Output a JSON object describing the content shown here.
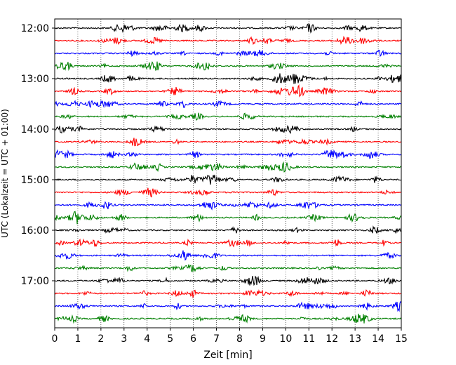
{
  "chart_data": {
    "type": "line",
    "subtype": "helicorder",
    "title": "",
    "xlabel": "Zeit  [min]",
    "ylabel": "UTC (Lokalzeit = UTC + 01:00)",
    "xlim": [
      0,
      15
    ],
    "x_ticks": [
      0,
      1,
      2,
      3,
      4,
      5,
      6,
      7,
      8,
      9,
      10,
      11,
      12,
      13,
      14,
      15
    ],
    "x_tick_labels": [
      "0",
      "1",
      "2",
      "3",
      "4",
      "5",
      "6",
      "7",
      "8",
      "9",
      "10",
      "11",
      "12",
      "13",
      "14",
      "15"
    ],
    "y_tick_labels": [
      "12:00",
      "13:00",
      "14:00",
      "15:00",
      "16:00",
      "17:00"
    ],
    "trace_start_minutes": [
      0,
      15,
      30,
      45,
      60,
      75,
      90,
      105,
      120,
      135,
      150,
      165,
      180,
      195,
      210,
      225,
      240,
      255,
      270,
      285,
      300,
      315,
      330,
      345
    ],
    "trace_colors": [
      "#000000",
      "#ff0000",
      "#0000ff",
      "#008000"
    ],
    "trace_count": 24,
    "grid": "vertical dotted at each minute",
    "legend": "none"
  }
}
